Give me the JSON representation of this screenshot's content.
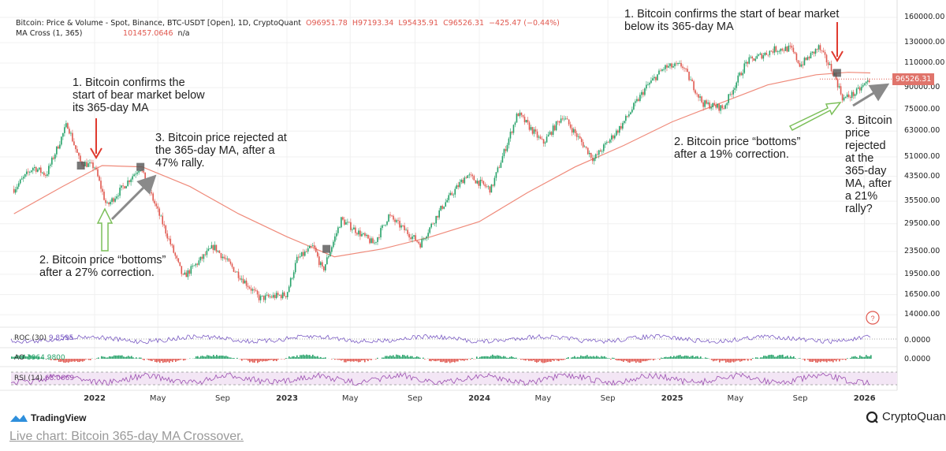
{
  "header": {
    "title": "Bitcoin: Price & Volume - Spot, Binance, BTC-USDT [Open], 1D, CryptoQuant",
    "open": "O96951.78",
    "high": "H97193.34",
    "low": "L95435.91",
    "close": "C96526.31",
    "change": "−425.47 (−0.44%)",
    "ma_label": "MA Cross (1, 365)",
    "ma_value": "101457.0646",
    "ma_na": "n/a"
  },
  "price_tag": "96526.31",
  "annotations": {
    "left_1": [
      "1. Bitcoin confirms the",
      "start of bear market below",
      "its 365-day MA"
    ],
    "left_2": [
      "2. Bitcoin price “bottoms”",
      "after a 27% correction."
    ],
    "left_3": [
      "3. Bitcoin price rejected at",
      "the 365-day MA, after a",
      "47% rally."
    ],
    "right_1": [
      "1. Bitcoin confirms the start of bear market",
      "below its 365-day MA"
    ],
    "right_2": [
      "2. Bitcoin price “bottoms”",
      "after a 19% correction."
    ],
    "right_3": [
      "3. Bitcoin",
      "price",
      "rejected",
      "at the",
      "365-day",
      "MA, after",
      "a 21%",
      "rally?"
    ]
  },
  "indicators": {
    "roc": {
      "label": "ROC (30)",
      "value": "9.8595",
      "axis": "0.0000"
    },
    "ao": {
      "label": "AO",
      "value": "3964.9800",
      "axis": "0.0000"
    },
    "rsi": {
      "label": "RSI (14)",
      "value": "68.0669"
    }
  },
  "footer": {
    "tradingview": "TradingView",
    "cryptoquant": "CryptoQuant",
    "link": "Live chart: Bitcoin 365-day MA Crossover."
  },
  "colors": {
    "up": "#26a269",
    "down": "#e0584f",
    "ma": "#ef8a7a",
    "roc": "#7b5cc4",
    "rsi": "#9b4fb0",
    "arrow_red": "#e03a2f",
    "arrow_green": "#7cbf5a",
    "arrow_gray": "#8a8a8a"
  },
  "chart_data": {
    "type": "line",
    "title": "Bitcoin: Price & Volume - Spot, Binance, BTC-USDT [Open], 1D, CryptoQuant",
    "y_scale": "log",
    "ylim": [
      14000,
      160000
    ],
    "y_ticks": [
      "160000.00",
      "130000.00",
      "110000.00",
      "90000.00",
      "75000.00",
      "63000.00",
      "51000.00",
      "43500.00",
      "35500.00",
      "29500.00",
      "23500.00",
      "19500.00",
      "16500.00",
      "14000.00"
    ],
    "x_ticks": [
      {
        "label": "2022",
        "date": "2022-01-01",
        "bold": true
      },
      {
        "label": "May",
        "date": "2022-05-01"
      },
      {
        "label": "Sep",
        "date": "2022-09-01"
      },
      {
        "label": "2023",
        "date": "2023-01-01",
        "bold": true
      },
      {
        "label": "May",
        "date": "2023-05-01"
      },
      {
        "label": "Sep",
        "date": "2023-09-01"
      },
      {
        "label": "2024",
        "date": "2024-01-01",
        "bold": true
      },
      {
        "label": "May",
        "date": "2024-05-01"
      },
      {
        "label": "Sep",
        "date": "2024-09-01"
      },
      {
        "label": "2025",
        "date": "2025-01-01",
        "bold": true
      },
      {
        "label": "May",
        "date": "2025-05-01"
      },
      {
        "label": "Sep",
        "date": "2025-09-01"
      },
      {
        "label": "2026",
        "date": "2026-01-01",
        "bold": true
      }
    ],
    "grid": true,
    "series": [
      {
        "name": "Bitcoin",
        "kind": "candles",
        "points": [
          [
            "2021-08-01",
            39200
          ],
          [
            "2021-09-07",
            47000
          ],
          [
            "2021-10-01",
            44000
          ],
          [
            "2021-11-10",
            67000
          ],
          [
            "2021-12-04",
            49000
          ],
          [
            "2022-01-01",
            47000
          ],
          [
            "2022-01-24",
            34000
          ],
          [
            "2022-03-28",
            47000
          ],
          [
            "2022-05-12",
            29000
          ],
          [
            "2022-06-18",
            19000
          ],
          [
            "2022-08-15",
            24500
          ],
          [
            "2022-11-10",
            16000
          ],
          [
            "2022-12-31",
            16500
          ],
          [
            "2023-01-20",
            22000
          ],
          [
            "2023-02-20",
            24500
          ],
          [
            "2023-03-10",
            20000
          ],
          [
            "2023-04-14",
            30500
          ],
          [
            "2023-06-15",
            25000
          ],
          [
            "2023-07-13",
            31500
          ],
          [
            "2023-09-11",
            25000
          ],
          [
            "2023-10-23",
            34000
          ],
          [
            "2023-12-08",
            44000
          ],
          [
            "2024-01-23",
            39000
          ],
          [
            "2024-03-14",
            73000
          ],
          [
            "2024-05-01",
            57000
          ],
          [
            "2024-06-07",
            71500
          ],
          [
            "2024-08-05",
            50000
          ],
          [
            "2024-09-27",
            66000
          ],
          [
            "2024-11-12",
            90000
          ],
          [
            "2024-12-17",
            106000
          ],
          [
            "2025-01-20",
            108000
          ],
          [
            "2025-02-28",
            79000
          ],
          [
            "2025-04-08",
            76000
          ],
          [
            "2025-05-22",
            111000
          ],
          [
            "2025-07-14",
            123000
          ],
          [
            "2025-08-14",
            124000
          ],
          [
            "2025-09-01",
            108000
          ],
          [
            "2025-10-06",
            125000
          ],
          [
            "2025-11-04",
            101000
          ],
          [
            "2025-11-21",
            82000
          ],
          [
            "2025-12-15",
            86000
          ],
          [
            "2026-01-12",
            96526.31
          ]
        ]
      },
      {
        "name": "MA Cross (1, 365)",
        "kind": "line",
        "points": [
          [
            "2021-08-01",
            32000
          ],
          [
            "2021-11-01",
            40000
          ],
          [
            "2022-01-15",
            47500
          ],
          [
            "2022-04-01",
            47000
          ],
          [
            "2022-07-01",
            40000
          ],
          [
            "2022-10-01",
            32000
          ],
          [
            "2023-01-01",
            26500
          ],
          [
            "2023-04-01",
            22500
          ],
          [
            "2023-07-01",
            24000
          ],
          [
            "2023-10-01",
            26500
          ],
          [
            "2024-01-01",
            30000
          ],
          [
            "2024-04-01",
            38000
          ],
          [
            "2024-07-01",
            47000
          ],
          [
            "2024-10-01",
            56000
          ],
          [
            "2025-01-01",
            68000
          ],
          [
            "2025-04-01",
            79000
          ],
          [
            "2025-07-01",
            92000
          ],
          [
            "2025-10-01",
            100000
          ],
          [
            "2025-12-01",
            102000
          ],
          [
            "2026-01-12",
            101457.0646
          ]
        ]
      }
    ],
    "crossovers": [
      [
        "2021-12-06",
        47500
      ],
      [
        "2022-03-29",
        47000
      ],
      [
        "2023-03-17",
        24000
      ],
      [
        "2025-11-10",
        101500
      ]
    ]
  }
}
